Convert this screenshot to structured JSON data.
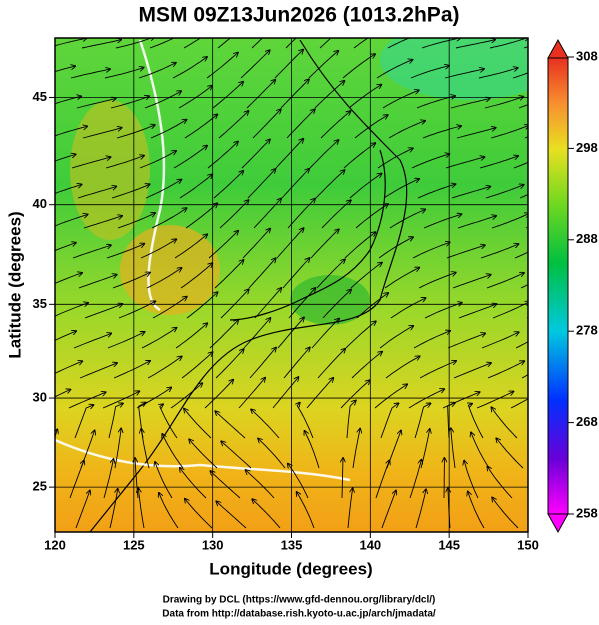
{
  "title": "MSM 09Z13Jun2026 (1013.2hPa)",
  "x_axis": {
    "label": "Longitude (degrees)",
    "lim": [
      120,
      150
    ],
    "ticks": [
      120,
      125,
      130,
      135,
      140,
      145,
      150
    ]
  },
  "y_axis": {
    "label": "Latitude  (degrees)",
    "lim": [
      22.4,
      47.6
    ],
    "ticks": [
      25,
      30,
      35,
      40,
      45
    ]
  },
  "colorbar": {
    "lim": [
      258,
      308
    ],
    "ticks": [
      258,
      268,
      278,
      288,
      298,
      308
    ]
  },
  "credits": [
    "Drawing by DCL (https://www.gfd-dennou.org/library/dcl/)",
    "Data from http://database.rish.kyoto-u.ac.jp/arch/jmadata/"
  ]
}
